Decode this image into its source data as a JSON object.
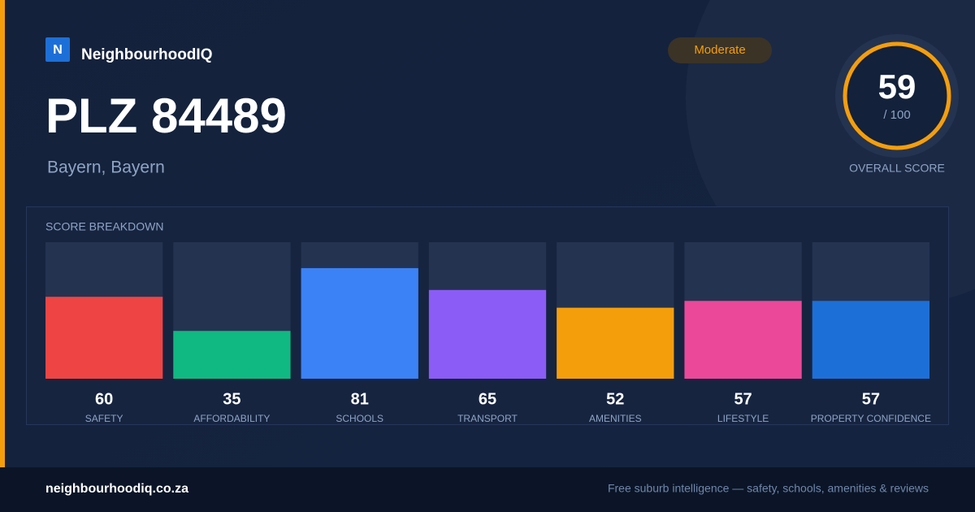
{
  "header": {
    "logo_letter": "N",
    "brand": "NeighbourhoodIQ",
    "badge": "Moderate",
    "title": "PLZ 84489",
    "subtitle": "Bayern, Bayern"
  },
  "score": {
    "value": 59,
    "max_label": "/ 100",
    "label": "OVERALL SCORE"
  },
  "chart_data": {
    "type": "bar",
    "title": "SCORE BREAKDOWN",
    "categories": [
      "SAFETY",
      "AFFORDABILITY",
      "SCHOOLS",
      "TRANSPORT",
      "AMENITIES",
      "LIFESTYLE",
      "PROPERTY CONFIDENCE"
    ],
    "values": [
      60,
      35,
      81,
      65,
      52,
      57,
      57
    ],
    "colors": [
      "#ef4444",
      "#10b981",
      "#3b82f6",
      "#8b5cf6",
      "#f59e0b",
      "#ec4899",
      "#1d6fd8"
    ],
    "ylim": [
      0,
      100
    ]
  },
  "footer": {
    "domain": "neighbourhoodiq.co.za",
    "tagline": "Free suburb intelligence — safety, schools, amenities & reviews"
  }
}
